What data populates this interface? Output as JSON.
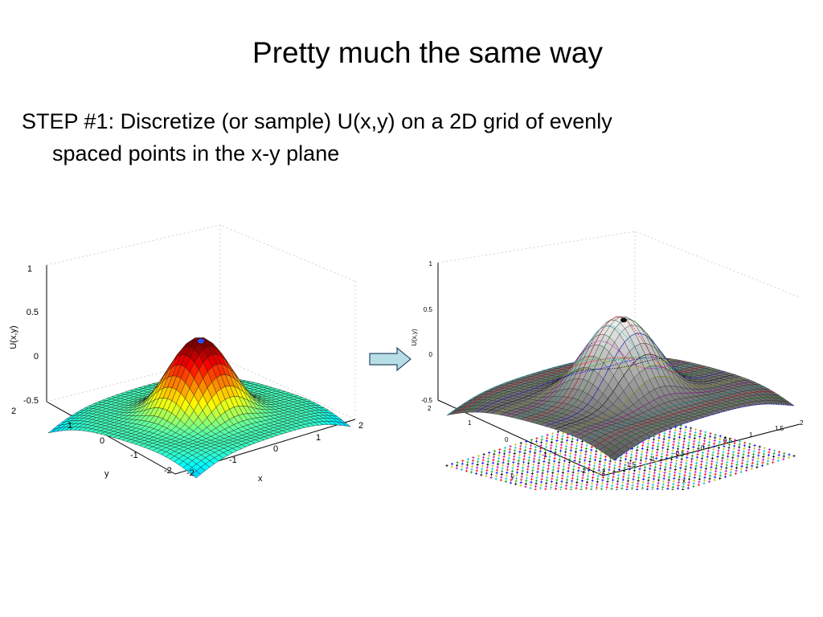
{
  "slide": {
    "title": "Pretty much the same way",
    "bullet_line1": "STEP #1:  Discretize (or sample) U(x,y) on a 2D grid of evenly",
    "bullet_line2": "spaced points in the x-y plane"
  },
  "colors": {
    "arrow_fill": "#b7dde6",
    "arrow_stroke": "#2a4a66",
    "plot_right_marker_colors": [
      "#0000ff",
      "#00a000",
      "#ff0000",
      "#00c0c0",
      "#c000c0",
      "#c0c000",
      "#000000"
    ]
  },
  "icons": {
    "arrow": "right-arrow-icon"
  },
  "figure_left": {
    "zlabel": "U(x,y)",
    "xlabel": "x",
    "ylabel": "y",
    "z_ticks": [
      "1",
      "0.5",
      "0",
      "-0.5"
    ],
    "x_ticks": [
      "-2",
      "-1",
      "0",
      "1",
      "2"
    ],
    "y_ticks": [
      "2",
      "1",
      "0",
      "-1",
      "-2"
    ],
    "colormap": "jet"
  },
  "figure_right": {
    "zlabel": "U(x,y)",
    "xlabel": "x",
    "ylabel": "y",
    "z_ticks": [
      "1",
      "0.5",
      "0",
      "-0.5"
    ],
    "x_ticks": [
      "-2",
      "-1.5",
      "-1",
      "-0.5",
      "0",
      "0.5",
      "1",
      "1.5",
      "2"
    ],
    "y_ticks": [
      "2",
      "1",
      "0",
      "-1",
      "-2"
    ],
    "colormap": "gray"
  }
}
